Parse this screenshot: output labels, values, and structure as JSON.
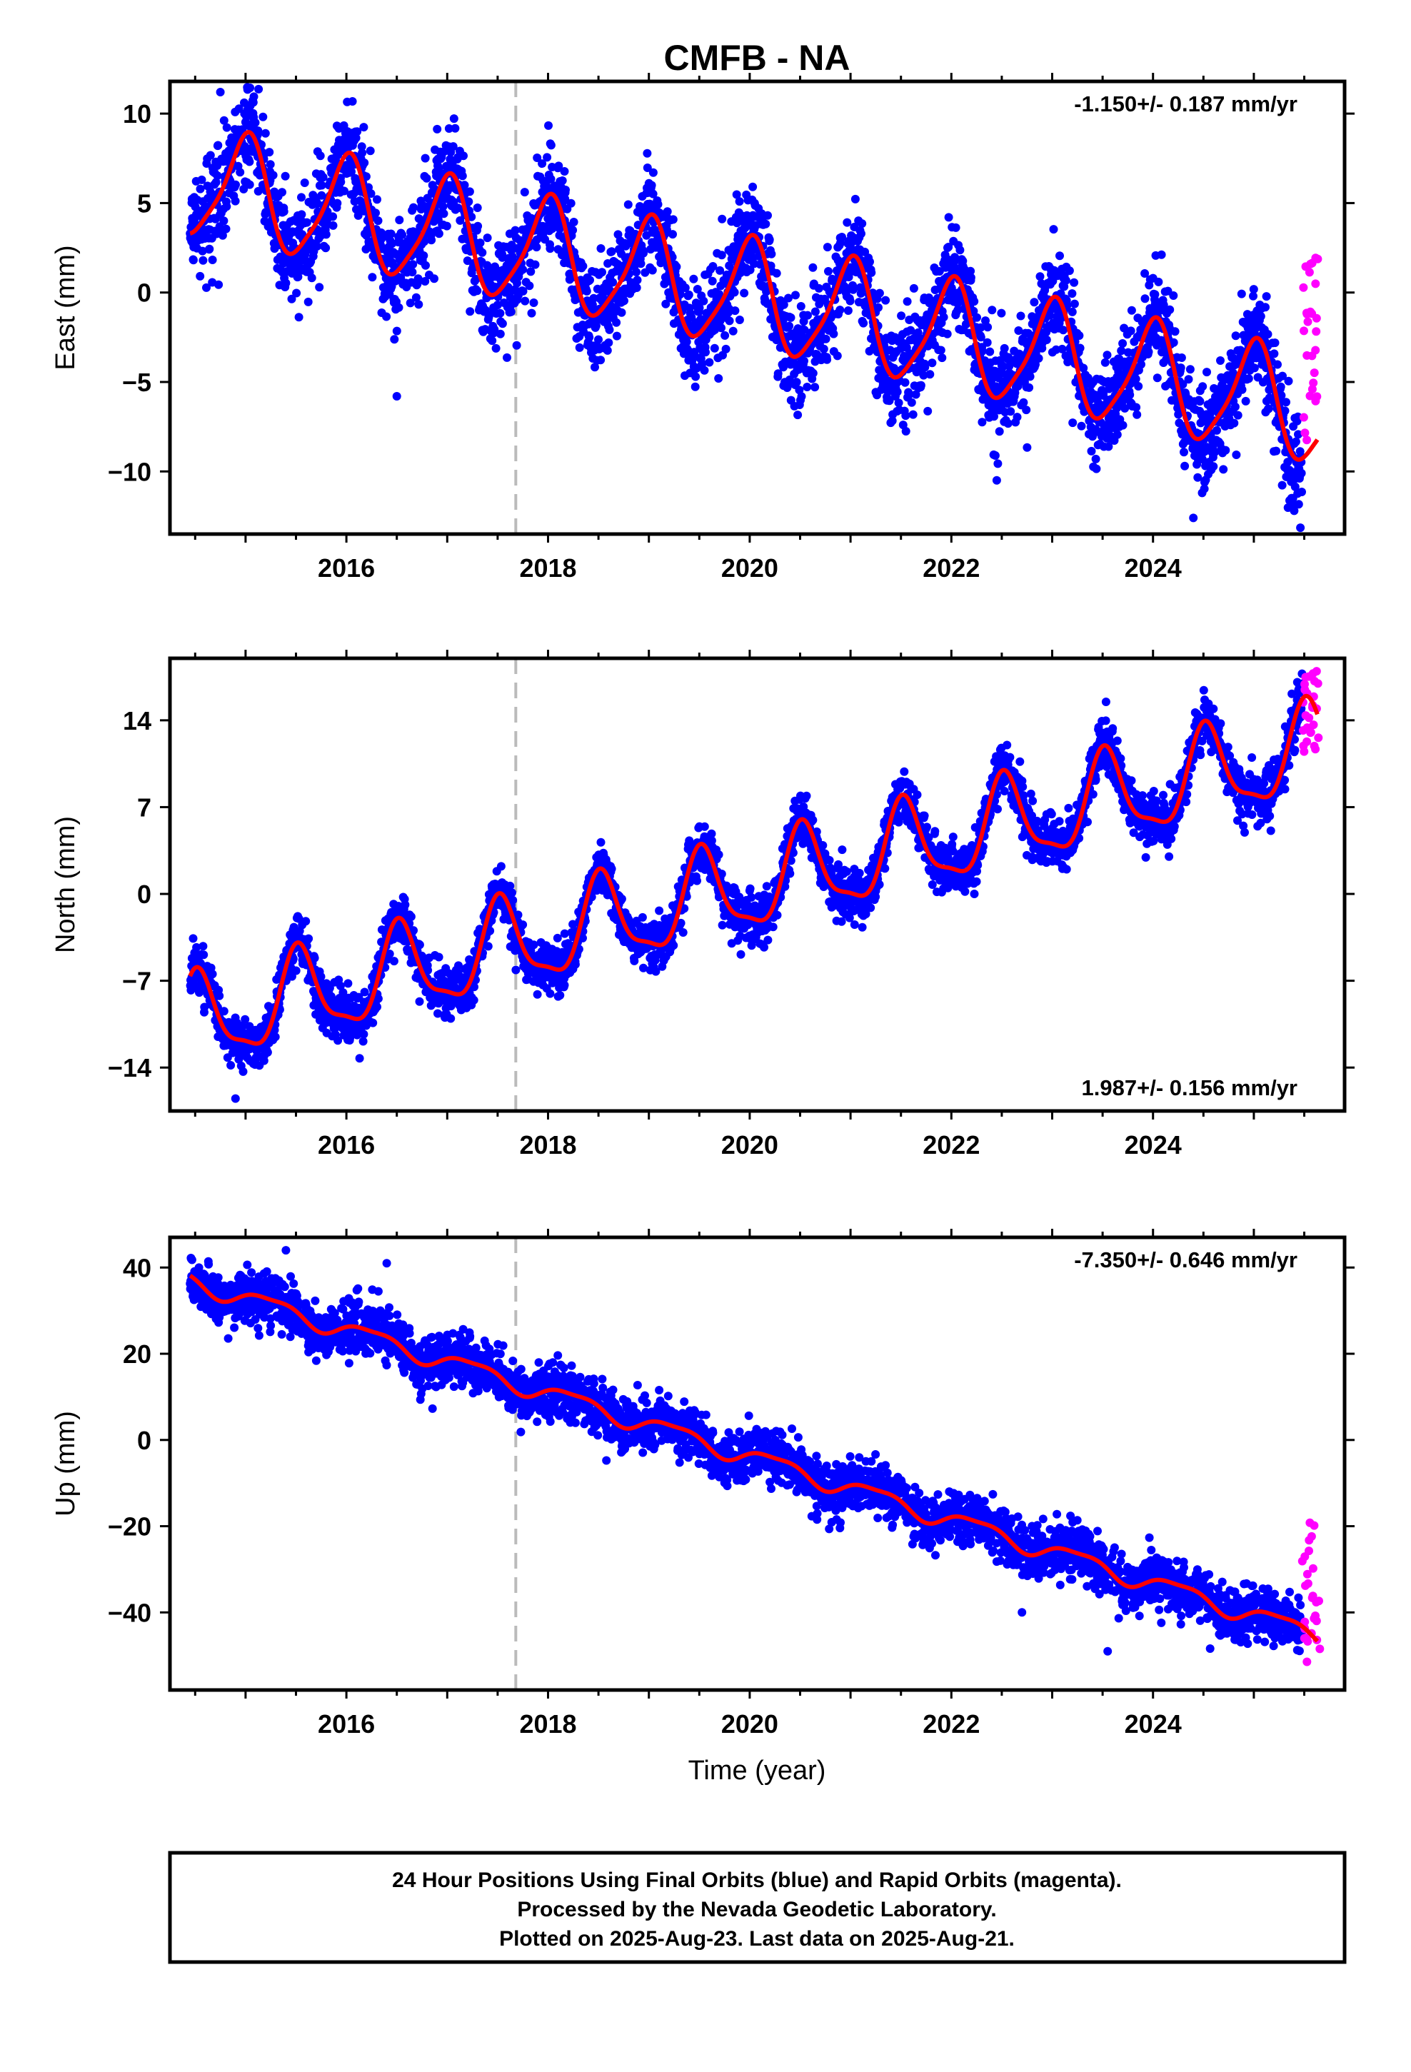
{
  "title": "CMFB - NA",
  "x_axis_label": "Time (year)",
  "footer": {
    "line1": "24 Hour Positions Using Final Orbits (blue) and Rapid Orbits (magenta).",
    "line2": "Processed by the Nevada Geodetic Laboratory.",
    "line3": "Plotted on 2025-Aug-23. Last data on 2025-Aug-21."
  },
  "colors": {
    "final_orbits": "#0000ff",
    "rapid_orbits": "#ff00ff",
    "model_fit": "#ff0000",
    "event_line": "#bbbbbb"
  },
  "chart_data": [
    {
      "type": "scatter",
      "component": "east",
      "ylabel": "East (mm)",
      "rate": "-1.150+/- 0.187 mm/yr",
      "rate_position": "top-right",
      "xlim": [
        2014.25,
        2025.9
      ],
      "ylim": [
        -13.5,
        11.8
      ],
      "x_ticks": [
        2016,
        2018,
        2020,
        2022,
        2024
      ],
      "y_ticks": [
        10,
        5,
        0,
        -5,
        -10
      ],
      "data_start": 2014.45,
      "data_end": 2025.48,
      "rapid_start": 2025.48,
      "rapid_end": 2025.64,
      "event_line_x": 2017.68,
      "fit": {
        "intercept_at_2014.45": 6.2,
        "slope_mm_per_yr": -1.15,
        "annual": {
          "amplitude": 3.0,
          "peak_year_fraction": 0.0
        },
        "semiannual": {
          "amplitude": 0.6,
          "peak_year_fraction": 0.08
        },
        "noise_sd": 1.4
      },
      "rapid_range": [
        -9.0,
        2.0
      ],
      "outliers": [
        [
          2016.5,
          -5.8
        ],
        [
          2024.4,
          -12.6
        ],
        [
          2025.4,
          -12.2
        ],
        [
          2014.75,
          11.2
        ],
        [
          2022.45,
          -10.5
        ]
      ],
      "series": [
        {
          "name": "Final Orbits (blue)",
          "kind": "points"
        },
        {
          "name": "Rapid Orbits (magenta)",
          "kind": "points"
        },
        {
          "name": "Model",
          "kind": "line"
        }
      ]
    },
    {
      "type": "scatter",
      "component": "north",
      "ylabel": "North (mm)",
      "rate": "1.987+/- 0.156 mm/yr",
      "rate_position": "bottom-right",
      "xlim": [
        2014.25,
        2025.9
      ],
      "ylim": [
        -17.5,
        19.0
      ],
      "x_ticks": [
        2016,
        2018,
        2020,
        2022,
        2024
      ],
      "y_ticks": [
        14,
        7,
        0,
        -7,
        -14
      ],
      "data_start": 2014.45,
      "data_end": 2025.48,
      "rapid_start": 2025.48,
      "rapid_end": 2025.64,
      "event_line_x": 2017.68,
      "fit": {
        "intercept_at_2014.45": -10.5,
        "slope_mm_per_yr": 1.987,
        "annual": {
          "amplitude": 3.5,
          "peak_year_fraction": 0.53
        },
        "semiannual": {
          "amplitude": 1.0,
          "peak_year_fraction": 0.5
        },
        "noise_sd": 1.0
      },
      "rapid_range": [
        11.0,
        18.0
      ],
      "outliers": [
        [
          2014.9,
          -16.5
        ]
      ],
      "series": [
        {
          "name": "Final Orbits (blue)",
          "kind": "points"
        },
        {
          "name": "Rapid Orbits (magenta)",
          "kind": "points"
        },
        {
          "name": "Model",
          "kind": "line"
        }
      ]
    },
    {
      "type": "scatter",
      "component": "up",
      "ylabel": "Up (mm)",
      "rate": "-7.350+/- 0.646 mm/yr",
      "rate_position": "top-right",
      "xlim": [
        2014.25,
        2025.9
      ],
      "ylim": [
        -58,
        47
      ],
      "x_ticks": [
        2016,
        2018,
        2020,
        2022,
        2024
      ],
      "y_ticks": [
        40,
        20,
        0,
        -20,
        -40
      ],
      "data_start": 2014.45,
      "data_end": 2025.48,
      "rapid_start": 2025.48,
      "rapid_end": 2025.64,
      "event_line_x": 2017.68,
      "fit": {
        "intercept_at_2014.45": 37.0,
        "slope_mm_per_yr": -7.35,
        "annual": {
          "amplitude": 2.0,
          "peak_year_fraction": 0.25
        },
        "semiannual": {
          "amplitude": 0.6,
          "peak_year_fraction": 0.0
        },
        "noise_sd": 3.0
      },
      "rapid_range": [
        -54.0,
        -14.0
      ],
      "outliers": [
        [
          2015.4,
          44.0
        ],
        [
          2016.4,
          41.0
        ],
        [
          2022.7,
          -40.0
        ],
        [
          2023.55,
          -49.0
        ]
      ],
      "series": [
        {
          "name": "Final Orbits (blue)",
          "kind": "points"
        },
        {
          "name": "Rapid Orbits (magenta)",
          "kind": "points"
        },
        {
          "name": "Model",
          "kind": "line"
        }
      ]
    }
  ]
}
